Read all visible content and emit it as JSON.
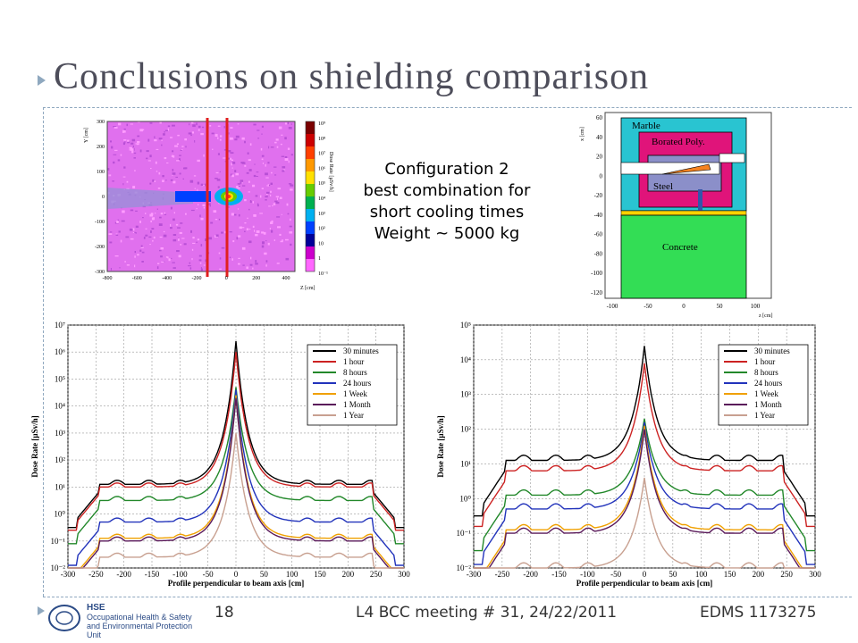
{
  "slide": {
    "title": "Conclusions on shielding comparison",
    "config_lines": [
      "Configuration 2",
      "best combination for",
      "short cooling times",
      "Weight ~ 5000 kg"
    ],
    "page_number": "18",
    "meeting": "L4 BCC meeting # 31, 24/22/2011",
    "edms": "EDMS 1173275",
    "logo": {
      "org": "CERN",
      "unit": "HSE",
      "line1": "Occupational Health & Safety",
      "line2": "and Environmental Protection Unit"
    }
  },
  "colormap": {
    "title": "Dose Rate [µSv/h]",
    "labels": [
      "10⁹",
      "10⁸",
      "10⁷",
      "10⁶",
      "10⁵",
      "10⁴",
      "10³",
      "10²",
      "10",
      "1",
      "10⁻¹"
    ],
    "colors": [
      "#7a0000",
      "#cc0000",
      "#ff4000",
      "#ff9900",
      "#ffe000",
      "#66cc00",
      "#00b050",
      "#00b0f0",
      "#0040ff",
      "#000099",
      "#cc00cc",
      "#ff66ff"
    ],
    "xlabel": "Z [cm]",
    "ylabel": "Y [cm]",
    "xticks": [
      "-800",
      "-600",
      "-400",
      "-200",
      "0",
      "200",
      "400"
    ],
    "yticks": [
      "300",
      "200",
      "100",
      "0",
      "-100",
      "-200",
      "-300"
    ]
  },
  "geometry": {
    "regions": [
      {
        "label": "Marble",
        "color": "#29c4d1"
      },
      {
        "label": "Borated Poly.",
        "color": "#e0147a"
      },
      {
        "label": "Steel",
        "color": "#8b8fc9"
      },
      {
        "label": "Concrete",
        "color": "#33dd55"
      }
    ],
    "ylabel": "x [cm]",
    "xlabel": "z [cm]",
    "yticks": [
      "60",
      "40",
      "20",
      "0",
      "-20",
      "-40",
      "-60",
      "-80",
      "-100",
      "-120"
    ],
    "xticks": [
      "-100",
      "-50",
      "0",
      "50",
      "100"
    ]
  },
  "chart_data": [
    {
      "type": "line",
      "xlabel": "Profile perpendicular to beam axis [cm]",
      "ylabel": "Dose Rate [µSv/h]",
      "xlim": [
        -300,
        300
      ],
      "ylim_log10": [
        -2,
        7
      ],
      "log_y": true,
      "xticks": [
        "-300",
        "-250",
        "-200",
        "-150",
        "-100",
        "-50",
        "0",
        "50",
        "100",
        "150",
        "200",
        "250",
        "300"
      ],
      "yticks": [
        "10⁻²",
        "10⁻¹",
        "10⁰",
        "10¹",
        "10²",
        "10³",
        "10⁴",
        "10⁵",
        "10⁶",
        "10⁷"
      ],
      "grid": true,
      "legend_position": "top-right",
      "series": [
        {
          "name": "30 minutes",
          "color": "#000000",
          "edge": 1.1,
          "peak": 6.4
        },
        {
          "name": "1 hour",
          "color": "#cc2222",
          "edge": 1.0,
          "peak": 6.0
        },
        {
          "name": "8 hours",
          "color": "#22882a",
          "edge": 0.5,
          "peak": 4.7
        },
        {
          "name": "24 hours",
          "color": "#2233bb",
          "edge": -0.3,
          "peak": 4.6
        },
        {
          "name": "1 Week",
          "color": "#f0a000",
          "edge": -0.9,
          "peak": 4.4
        },
        {
          "name": "1 Month",
          "color": "#5a1a5a",
          "edge": -1.0,
          "peak": 4.3
        },
        {
          "name": "1 Year",
          "color": "#c8a090",
          "edge": -1.6,
          "peak": 3.0
        }
      ]
    },
    {
      "type": "line",
      "xlabel": "Profile perpendicular to beam axis [cm]",
      "ylabel": "Dose Rate [µSv/h]",
      "xlim": [
        -300,
        300
      ],
      "ylim_log10": [
        -2,
        5
      ],
      "log_y": true,
      "xticks": [
        "-300",
        "-250",
        "-200",
        "-150",
        "-100",
        "-50",
        "0",
        "50",
        "100",
        "150",
        "200",
        "250",
        "300"
      ],
      "yticks": [
        "10⁻²",
        "10⁻¹",
        "10⁰",
        "10¹",
        "10²",
        "10³",
        "10⁴",
        "10⁵"
      ],
      "grid": true,
      "legend_position": "top-right",
      "series": [
        {
          "name": "30 minutes",
          "color": "#000000",
          "edge": 1.1,
          "peak": 4.4
        },
        {
          "name": "1 hour",
          "color": "#cc2222",
          "edge": 0.8,
          "peak": 3.9
        },
        {
          "name": "8 hours",
          "color": "#22882a",
          "edge": 0.1,
          "peak": 2.3
        },
        {
          "name": "24 hours",
          "color": "#2233bb",
          "edge": -0.3,
          "peak": 2.2
        },
        {
          "name": "1 Week",
          "color": "#f0a000",
          "edge": -0.9,
          "peak": 2.1
        },
        {
          "name": "1 Month",
          "color": "#5a1a5a",
          "edge": -1.0,
          "peak": 2.0
        },
        {
          "name": "1 Year",
          "color": "#c8a090",
          "edge": -2.0,
          "peak": 0.6
        }
      ]
    }
  ]
}
